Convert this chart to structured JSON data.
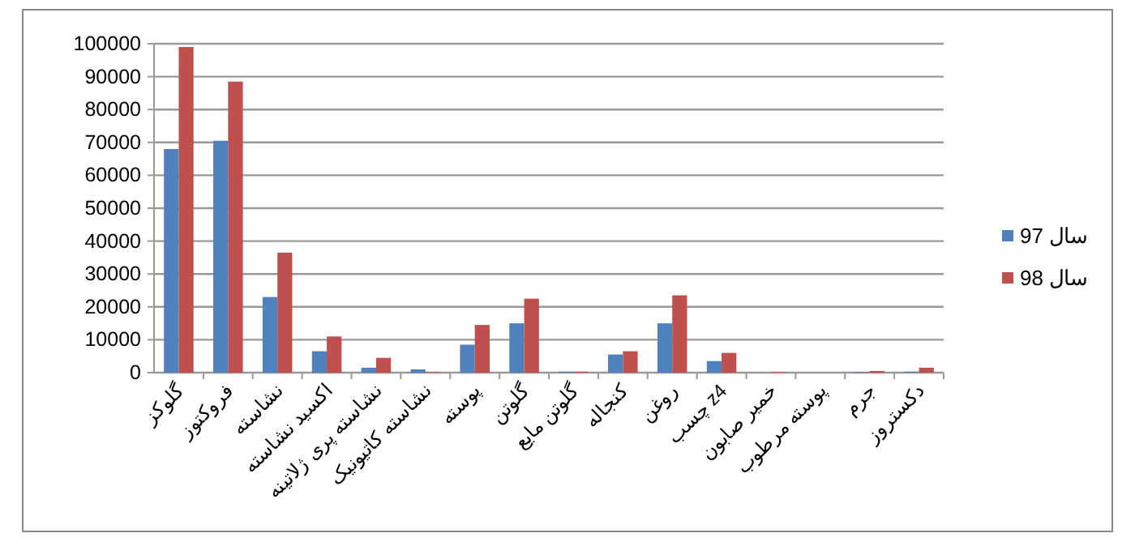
{
  "chart_data": {
    "type": "bar",
    "categories": [
      "گلوکز",
      "فروکتوز",
      "نشاسته",
      "اکسید نشاسته",
      "نشاسته پری ژلاتینه",
      "نشاسته کاتیونیک",
      "پوسته",
      "گلوتن",
      "گلوتن مایع",
      "کنجاله",
      "روغن",
      "چسب z4",
      "خمیر صابون",
      "پوسته مرطوب",
      "جرم",
      "دکستروز"
    ],
    "series": [
      {
        "name": "سال 97",
        "color": "#4f81bd",
        "values": [
          68000,
          70500,
          23000,
          6500,
          1500,
          1000,
          8500,
          15000,
          300,
          5500,
          15000,
          3500,
          null,
          null,
          200,
          300
        ]
      },
      {
        "name": "سال 98",
        "color": "#c0504d",
        "values": [
          99000,
          88500,
          36500,
          11000,
          4500,
          200,
          14500,
          22500,
          300,
          6500,
          23500,
          6000,
          200,
          null,
          500,
          1500
        ]
      }
    ],
    "ylim": [
      0,
      100000
    ],
    "yticks": [
      0,
      10000,
      20000,
      30000,
      40000,
      50000,
      60000,
      70000,
      80000,
      90000,
      100000
    ],
    "grid": "y",
    "legend": "right"
  }
}
